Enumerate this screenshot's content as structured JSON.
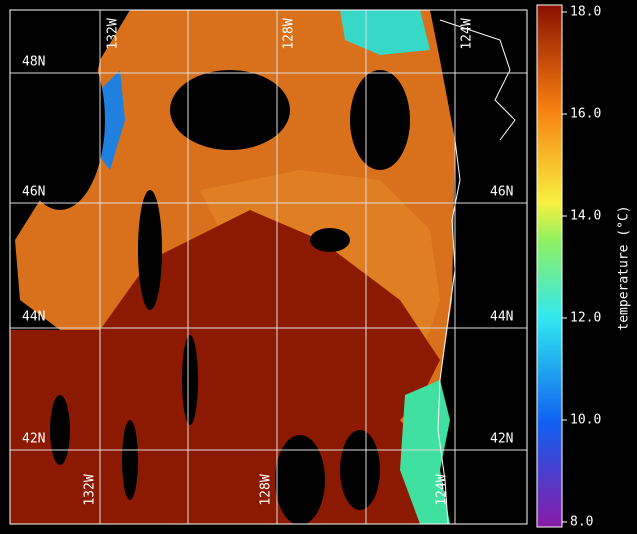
{
  "map": {
    "lat_labels_left": [
      "48N",
      "46N",
      "44N",
      "42N"
    ],
    "lat_labels_right": [
      "46N",
      "44N",
      "42N"
    ],
    "lon_labels_top": [
      "132W",
      "128W",
      "124W"
    ],
    "lon_labels_bottom": [
      "132W",
      "128W",
      "124W"
    ]
  },
  "colorbar": {
    "label": "temperature (°C)",
    "lim": [
      8,
      18
    ],
    "ticks": [
      {
        "value": 8,
        "label": "8.0"
      },
      {
        "value": 10,
        "label": "10.0"
      },
      {
        "value": 12,
        "label": "12.0"
      },
      {
        "value": 14,
        "label": "14.0"
      },
      {
        "value": 16,
        "label": "16.0"
      },
      {
        "value": 18,
        "label": "18.0"
      }
    ]
  }
}
